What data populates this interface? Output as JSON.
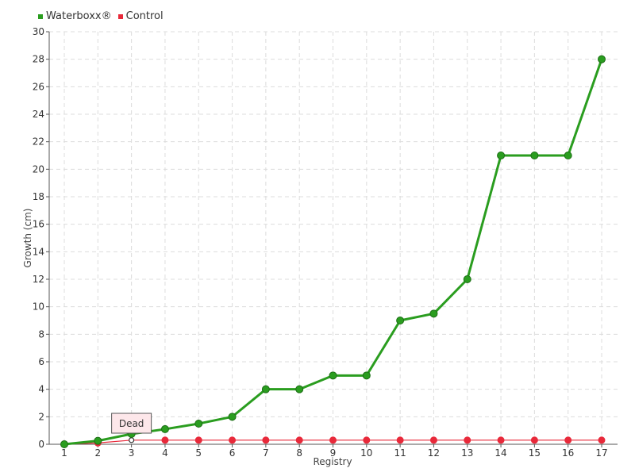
{
  "colors": {
    "waterboxx": "#2a9d1f",
    "waterboxx_dark": "#1d6e16",
    "control": "#e8293a",
    "grid": "#dcdcdc",
    "axis": "#555555",
    "tooltip_bg": "#fde7ea"
  },
  "legend": {
    "items": [
      {
        "label": "Waterboxx®",
        "color": "#2a9d1f"
      },
      {
        "label": "Control",
        "color": "#e8293a"
      }
    ]
  },
  "chart_data": {
    "type": "line",
    "title": "",
    "xlabel": "Registry",
    "ylabel": "Growth (cm)",
    "categories": [
      "1",
      "2",
      "3",
      "4",
      "5",
      "6",
      "7",
      "8",
      "9",
      "10",
      "11",
      "12",
      "13",
      "14",
      "15",
      "16",
      "17"
    ],
    "ylim": [
      0,
      30
    ],
    "yticks": [
      0,
      2,
      4,
      6,
      8,
      10,
      12,
      14,
      16,
      18,
      20,
      22,
      24,
      26,
      28,
      30
    ],
    "grid": true,
    "legend_position": "top-left",
    "series": [
      {
        "name": "Waterboxx®",
        "values": [
          0,
          0.25,
          0.75,
          1.1,
          1.5,
          2,
          4,
          4,
          5,
          5,
          9,
          9.5,
          12,
          21,
          21,
          21,
          28
        ]
      },
      {
        "name": "Control",
        "values": [
          0,
          0.1,
          0.3,
          0.3,
          0.3,
          0.3,
          0.3,
          0.3,
          0.3,
          0.3,
          0.3,
          0.3,
          0.3,
          0.3,
          0.3,
          0.3,
          0.3
        ]
      }
    ],
    "annotations": [
      {
        "text": "Dead",
        "series": "Control",
        "category": "3"
      }
    ]
  }
}
